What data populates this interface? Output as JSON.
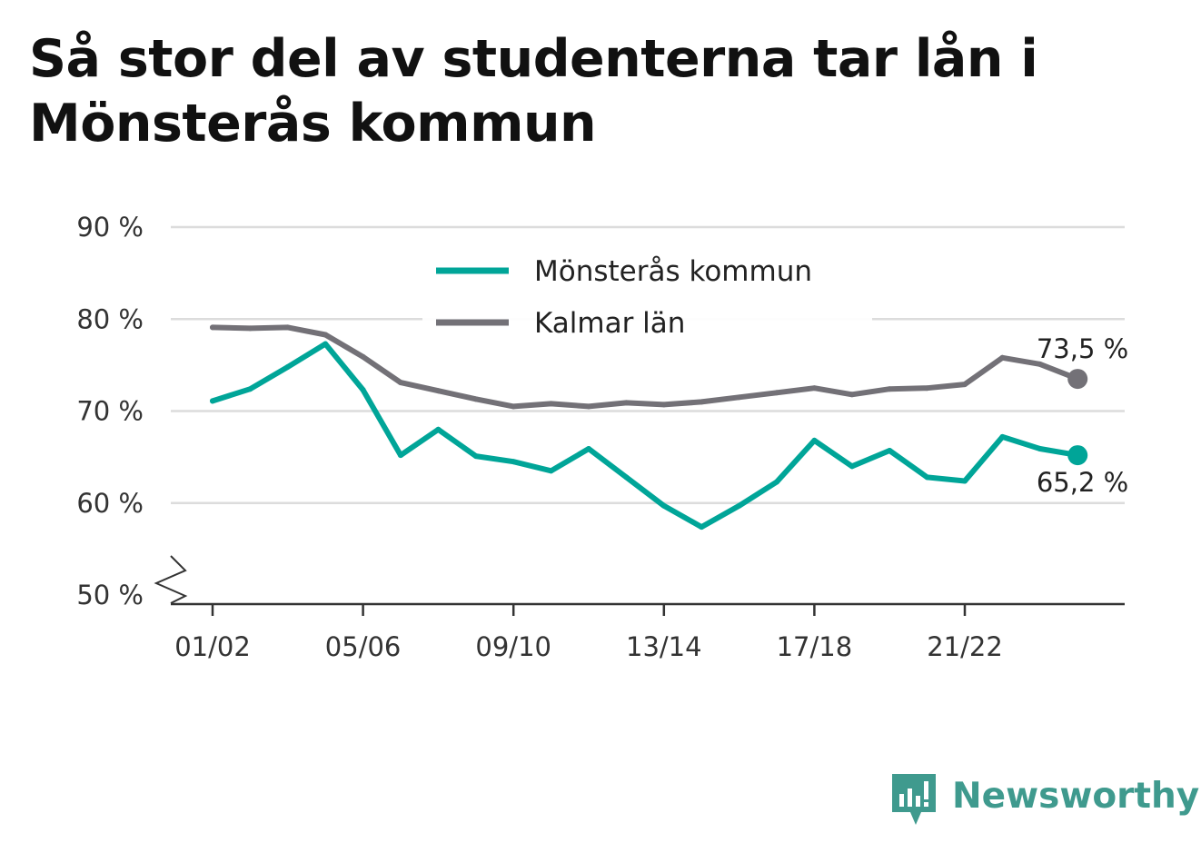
{
  "title": "Så stor del av studenterna tar lån i Mönsterås kommun",
  "brand": {
    "name": "Newsworthy",
    "icon": "newsworthy-logo-icon",
    "color": "#3f9a8e"
  },
  "chart_data": {
    "type": "line",
    "title": "Så stor del av studenterna tar lån i Mönsterås kommun",
    "xlabel": "",
    "ylabel": "",
    "x": [
      "01/02",
      "02/03",
      "03/04",
      "04/05",
      "05/06",
      "06/07",
      "07/08",
      "08/09",
      "09/10",
      "10/11",
      "11/12",
      "12/13",
      "13/14",
      "14/15",
      "15/16",
      "16/17",
      "17/18",
      "18/19",
      "19/20",
      "20/21",
      "21/22",
      "22/23",
      "23/24",
      "24/25"
    ],
    "x_tick_labels": [
      "01/02",
      "05/06",
      "09/10",
      "13/14",
      "17/18",
      "21/22"
    ],
    "ylim": [
      50,
      90
    ],
    "y_ticks": [
      50,
      60,
      70,
      80,
      90
    ],
    "y_tick_labels": [
      "50 %",
      "60 %",
      "70 %",
      "80 %",
      "90 %"
    ],
    "y_axis_break": true,
    "grid": true,
    "legend_position": "top-center",
    "series": [
      {
        "name": "Mönsterås kommun",
        "color": "#00a598",
        "values": [
          71.1,
          72.4,
          74.8,
          77.3,
          72.3,
          65.2,
          68.0,
          65.1,
          64.5,
          63.5,
          65.9,
          62.8,
          59.7,
          57.4,
          59.7,
          62.3,
          66.8,
          64.0,
          65.7,
          62.8,
          62.4,
          67.2,
          65.9,
          65.2
        ],
        "end_label": "65,2 %"
      },
      {
        "name": "Kalmar län",
        "color": "#737177",
        "values": [
          79.1,
          79.0,
          79.1,
          78.3,
          75.9,
          73.1,
          72.2,
          71.3,
          70.5,
          70.8,
          70.5,
          70.9,
          70.7,
          71.0,
          71.5,
          72.0,
          72.5,
          71.8,
          72.4,
          72.5,
          72.9,
          75.8,
          75.1,
          73.5
        ],
        "end_label": "73,5 %"
      }
    ]
  }
}
